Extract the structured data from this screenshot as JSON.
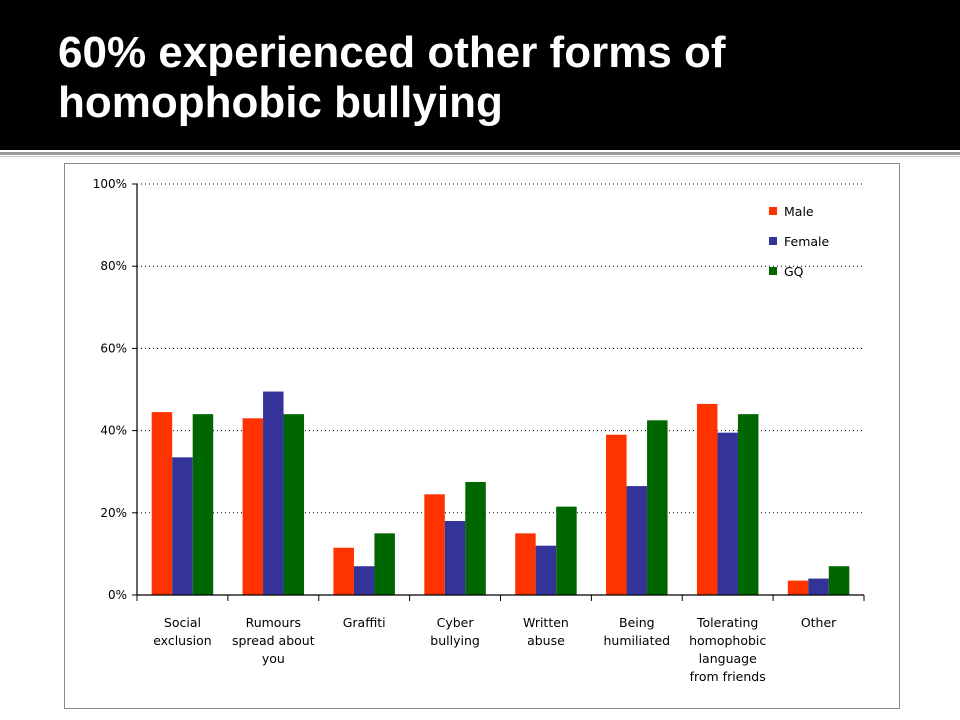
{
  "slide": {
    "title_line1": "60% experienced other forms of",
    "title_line2": "homophobic bullying"
  },
  "chart_data": {
    "type": "bar",
    "title": "",
    "xlabel": "",
    "ylabel": "",
    "ylim": [
      0,
      100
    ],
    "y_unit": "%",
    "yticks": [
      "0%",
      "20%",
      "40%",
      "60%",
      "80%",
      "100%"
    ],
    "grid": "horizontal dotted",
    "legend_position": "top-right",
    "categories": [
      [
        "Social",
        "exclusion"
      ],
      [
        "Rumours",
        "spread about",
        "you"
      ],
      [
        "Graffiti"
      ],
      [
        "Cyber",
        "bullying"
      ],
      [
        "Written",
        "abuse"
      ],
      [
        "Being",
        "humiliated"
      ],
      [
        "Tolerating",
        "homophobic",
        "language",
        "from friends"
      ],
      [
        "Other"
      ]
    ],
    "series": [
      {
        "name": "Male",
        "color": "#ff3300",
        "values": [
          44.5,
          43,
          11.5,
          24.5,
          15,
          39,
          46.5,
          3.5
        ]
      },
      {
        "name": "Female",
        "color": "#333399",
        "values": [
          33.5,
          49.5,
          7,
          18,
          12,
          26.5,
          39.5,
          4
        ]
      },
      {
        "name": "GQ",
        "color": "#006600",
        "values": [
          44,
          44,
          15,
          27.5,
          21.5,
          42.5,
          44,
          7
        ]
      }
    ]
  }
}
